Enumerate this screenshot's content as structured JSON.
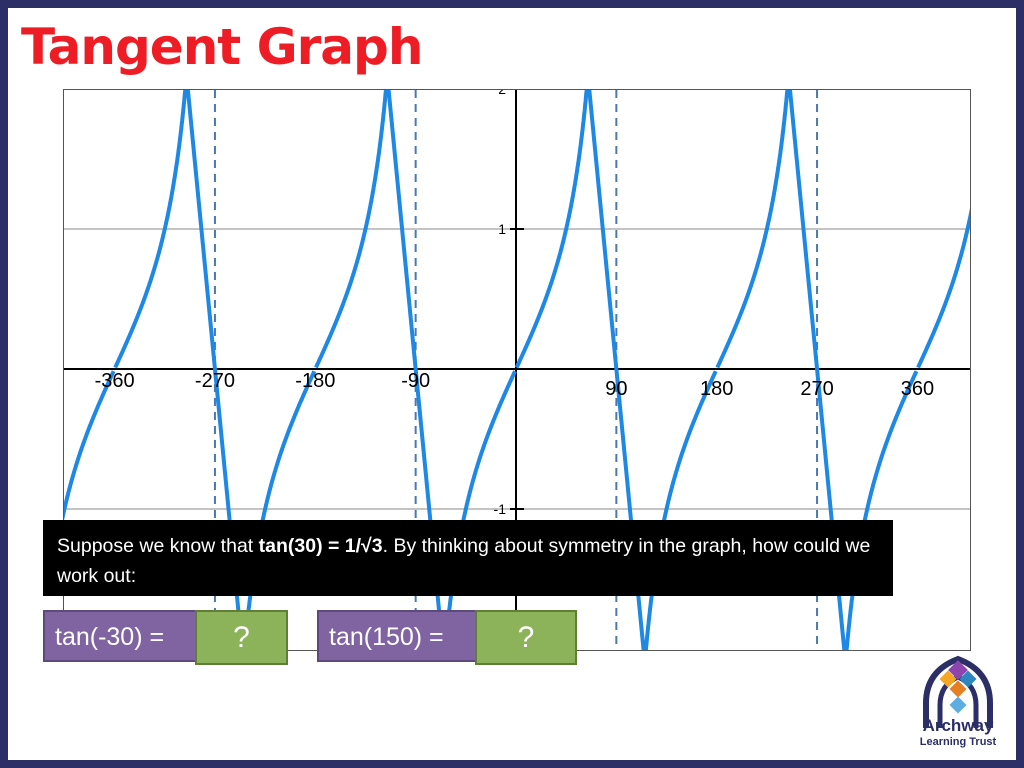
{
  "slide": {
    "title": "Tangent Graph"
  },
  "chart_data": {
    "type": "line",
    "function": "tan(x)",
    "xlim": [
      -430,
      440
    ],
    "ylim": [
      -2,
      2
    ],
    "x_tick_labels": [
      "-360",
      "-270",
      "-180",
      "-90",
      "90",
      "180",
      "270",
      "360"
    ],
    "x_tick_values": [
      -360,
      -270,
      -180,
      -90,
      90,
      180,
      270,
      360
    ],
    "y_tick_labels": [
      "2",
      "1",
      "-1"
    ],
    "y_tick_values": [
      2,
      1,
      -1
    ],
    "asymptotes": [
      -270,
      -90,
      90,
      270
    ],
    "grid": true,
    "colors": {
      "curve": "#1e88e5",
      "asymptote": "#4a78b0",
      "grid": "#b0b0b0",
      "axis": "#000000"
    }
  },
  "prompt": {
    "text_before": "Suppose we know that ",
    "bold_text": "tan(30) = 1/√3",
    "text_after": ". By thinking about symmetry in the graph, how could we work out:"
  },
  "questions": [
    {
      "label": "tan(-30) =",
      "answer": "?"
    },
    {
      "label": "tan(150) =",
      "answer": "?"
    }
  ],
  "logo": {
    "line1": "Archway",
    "line2": "Learning Trust",
    "colors": [
      "#f5a623",
      "#8e44ad",
      "#2b2f66",
      "#2e86c1"
    ]
  }
}
